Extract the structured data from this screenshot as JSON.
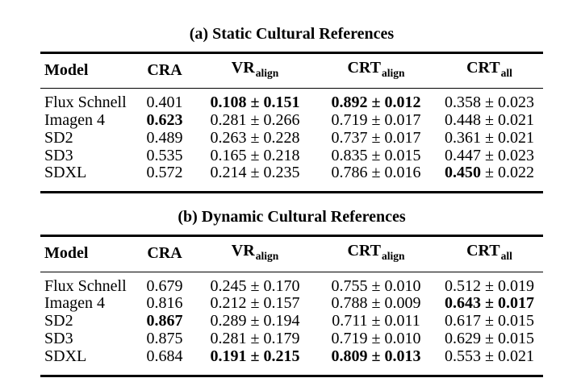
{
  "colors": {
    "background": "#ffffff",
    "text": "#000000",
    "rule": "#000000"
  },
  "symbols": {
    "plus_minus": "±"
  },
  "tables": [
    {
      "caption": "(a) Static Cultural References",
      "columns": [
        {
          "label": "Model",
          "sub": ""
        },
        {
          "label": "CRA",
          "sub": ""
        },
        {
          "label": "VR",
          "sub": "align"
        },
        {
          "label": "CRT",
          "sub": "align"
        },
        {
          "label": "CRT",
          "sub": "all"
        }
      ],
      "rows": [
        {
          "model": "Flux Schnell",
          "cra": {
            "value": "0.401",
            "bold": "none"
          },
          "vr": {
            "value": "0.108",
            "pm": "0.151",
            "bold": "all"
          },
          "crt_align": {
            "value": "0.892",
            "pm": "0.012",
            "bold": "all"
          },
          "crt_all": {
            "value": "0.358",
            "pm": "0.023",
            "bold": "none"
          }
        },
        {
          "model": "Imagen 4",
          "cra": {
            "value": "0.623",
            "bold": "all"
          },
          "vr": {
            "value": "0.281",
            "pm": "0.266",
            "bold": "none"
          },
          "crt_align": {
            "value": "0.719",
            "pm": "0.017",
            "bold": "none"
          },
          "crt_all": {
            "value": "0.448",
            "pm": "0.021",
            "bold": "none"
          }
        },
        {
          "model": "SD2",
          "cra": {
            "value": "0.489",
            "bold": "none"
          },
          "vr": {
            "value": "0.263",
            "pm": "0.228",
            "bold": "none"
          },
          "crt_align": {
            "value": "0.737",
            "pm": "0.017",
            "bold": "none"
          },
          "crt_all": {
            "value": "0.361",
            "pm": "0.021",
            "bold": "none"
          }
        },
        {
          "model": "SD3",
          "cra": {
            "value": "0.535",
            "bold": "none"
          },
          "vr": {
            "value": "0.165",
            "pm": "0.218",
            "bold": "none"
          },
          "crt_align": {
            "value": "0.835",
            "pm": "0.015",
            "bold": "none"
          },
          "crt_all": {
            "value": "0.447",
            "pm": "0.023",
            "bold": "none"
          }
        },
        {
          "model": "SDXL",
          "cra": {
            "value": "0.572",
            "bold": "none"
          },
          "vr": {
            "value": "0.214",
            "pm": "0.235",
            "bold": "none"
          },
          "crt_align": {
            "value": "0.786",
            "pm": "0.016",
            "bold": "none"
          },
          "crt_all": {
            "value": "0.450",
            "pm": "0.022",
            "bold": "value"
          }
        }
      ]
    },
    {
      "caption": "(b) Dynamic Cultural References",
      "columns": [
        {
          "label": "Model",
          "sub": ""
        },
        {
          "label": "CRA",
          "sub": ""
        },
        {
          "label": "VR",
          "sub": "align"
        },
        {
          "label": "CRT",
          "sub": "align"
        },
        {
          "label": "CRT",
          "sub": "all"
        }
      ],
      "rows": [
        {
          "model": "Flux Schnell",
          "cra": {
            "value": "0.679",
            "bold": "none"
          },
          "vr": {
            "value": "0.245",
            "pm": "0.170",
            "bold": "none"
          },
          "crt_align": {
            "value": "0.755",
            "pm": "0.010",
            "bold": "none"
          },
          "crt_all": {
            "value": "0.512",
            "pm": "0.019",
            "bold": "none"
          }
        },
        {
          "model": "Imagen 4",
          "cra": {
            "value": "0.816",
            "bold": "none"
          },
          "vr": {
            "value": "0.212",
            "pm": "0.157",
            "bold": "none"
          },
          "crt_align": {
            "value": "0.788",
            "pm": "0.009",
            "bold": "none"
          },
          "crt_all": {
            "value": "0.643",
            "pm": "0.017",
            "bold": "all"
          }
        },
        {
          "model": "SD2",
          "cra": {
            "value": "0.867",
            "bold": "all"
          },
          "vr": {
            "value": "0.289",
            "pm": "0.194",
            "bold": "none"
          },
          "crt_align": {
            "value": "0.711",
            "pm": "0.011",
            "bold": "none"
          },
          "crt_all": {
            "value": "0.617",
            "pm": "0.015",
            "bold": "none"
          }
        },
        {
          "model": "SD3",
          "cra": {
            "value": "0.875",
            "bold": "none"
          },
          "vr": {
            "value": "0.281",
            "pm": "0.179",
            "bold": "none"
          },
          "crt_align": {
            "value": "0.719",
            "pm": "0.010",
            "bold": "none"
          },
          "crt_all": {
            "value": "0.629",
            "pm": "0.015",
            "bold": "none"
          }
        },
        {
          "model": "SDXL",
          "cra": {
            "value": "0.684",
            "bold": "none"
          },
          "vr": {
            "value": "0.191",
            "pm": "0.215",
            "bold": "all"
          },
          "crt_align": {
            "value": "0.809",
            "pm": "0.013",
            "bold": "all"
          },
          "crt_all": {
            "value": "0.553",
            "pm": "0.021",
            "bold": "none"
          }
        }
      ]
    }
  ]
}
